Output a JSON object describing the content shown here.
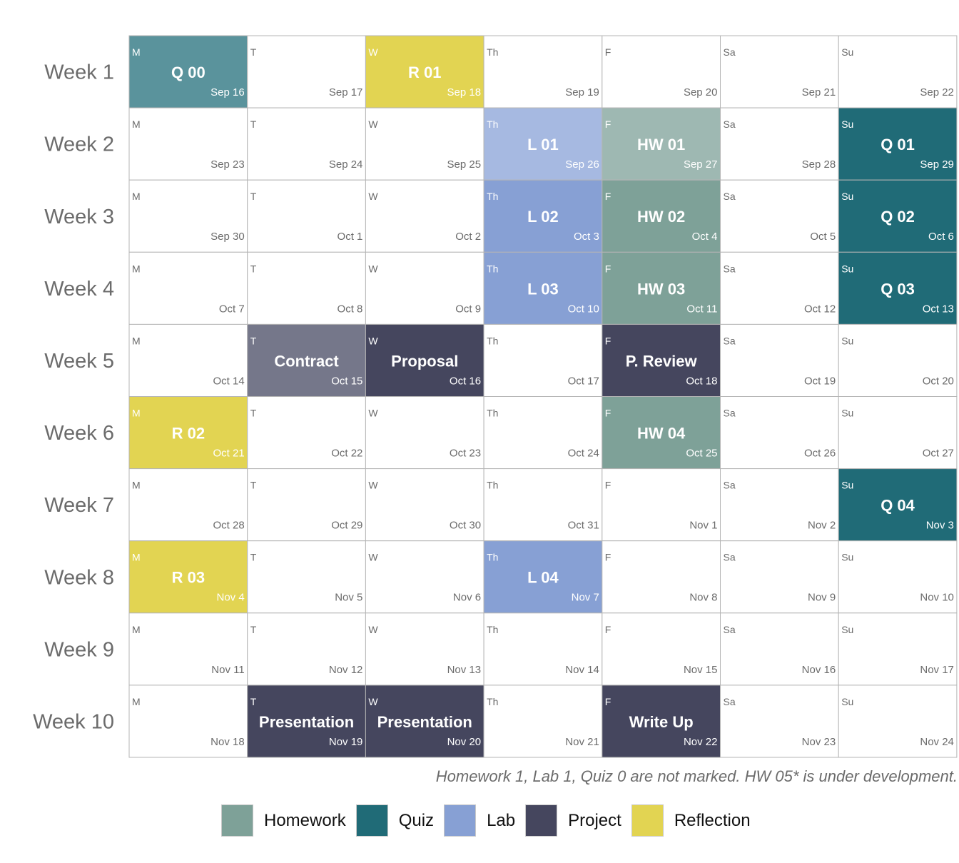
{
  "chart_data": {
    "type": "heatmap",
    "title": "",
    "rows": [
      "Week 1",
      "Week 2",
      "Week 3",
      "Week 4",
      "Week 5",
      "Week 6",
      "Week 7",
      "Week 8",
      "Week 9",
      "Week 10"
    ],
    "days": [
      "M",
      "T",
      "W",
      "Th",
      "F",
      "Sa",
      "Su"
    ],
    "dates": [
      [
        "Sep 16",
        "Sep 17",
        "Sep 18",
        "Sep 19",
        "Sep 20",
        "Sep 21",
        "Sep 22"
      ],
      [
        "Sep 23",
        "Sep 24",
        "Sep 25",
        "Sep 26",
        "Sep 27",
        "Sep 28",
        "Sep 29"
      ],
      [
        "Sep 30",
        "Oct 1",
        "Oct 2",
        "Oct 3",
        "Oct 4",
        "Oct 5",
        "Oct 6"
      ],
      [
        "Oct 7",
        "Oct 8",
        "Oct 9",
        "Oct 10",
        "Oct 11",
        "Oct 12",
        "Oct 13"
      ],
      [
        "Oct 14",
        "Oct 15",
        "Oct 16",
        "Oct 17",
        "Oct 18",
        "Oct 19",
        "Oct 20"
      ],
      [
        "Oct 21",
        "Oct 22",
        "Oct 23",
        "Oct 24",
        "Oct 25",
        "Oct 26",
        "Oct 27"
      ],
      [
        "Oct 28",
        "Oct 29",
        "Oct 30",
        "Oct 31",
        "Nov 1",
        "Nov 2",
        "Nov 3"
      ],
      [
        "Nov 4",
        "Nov 5",
        "Nov 6",
        "Nov 7",
        "Nov 8",
        "Nov 9",
        "Nov 10"
      ],
      [
        "Nov 11",
        "Nov 12",
        "Nov 13",
        "Nov 14",
        "Nov 15",
        "Nov 16",
        "Nov 17"
      ],
      [
        "Nov 18",
        "Nov 19",
        "Nov 20",
        "Nov 21",
        "Nov 22",
        "Nov 23",
        "Nov 24"
      ]
    ],
    "events": [
      {
        "week": 1,
        "day": 1,
        "label": "Q 00",
        "category": "Quiz",
        "muted": true
      },
      {
        "week": 1,
        "day": 3,
        "label": "R 01",
        "category": "Reflection"
      },
      {
        "week": 2,
        "day": 4,
        "label": "L 01",
        "category": "Lab",
        "muted": true
      },
      {
        "week": 2,
        "day": 5,
        "label": "HW 01",
        "category": "Homework",
        "muted": true
      },
      {
        "week": 2,
        "day": 7,
        "label": "Q 01",
        "category": "Quiz"
      },
      {
        "week": 3,
        "day": 4,
        "label": "L 02",
        "category": "Lab"
      },
      {
        "week": 3,
        "day": 5,
        "label": "HW 02",
        "category": "Homework"
      },
      {
        "week": 3,
        "day": 7,
        "label": "Q 02",
        "category": "Quiz"
      },
      {
        "week": 4,
        "day": 4,
        "label": "L 03",
        "category": "Lab"
      },
      {
        "week": 4,
        "day": 5,
        "label": "HW 03",
        "category": "Homework"
      },
      {
        "week": 4,
        "day": 7,
        "label": "Q 03",
        "category": "Quiz"
      },
      {
        "week": 5,
        "day": 2,
        "label": "Contract",
        "category": "Project",
        "muted": true
      },
      {
        "week": 5,
        "day": 3,
        "label": "Proposal",
        "category": "Project"
      },
      {
        "week": 5,
        "day": 5,
        "label": "P. Review",
        "category": "Project"
      },
      {
        "week": 6,
        "day": 1,
        "label": "R 02",
        "category": "Reflection"
      },
      {
        "week": 6,
        "day": 5,
        "label": "HW 04",
        "category": "Homework"
      },
      {
        "week": 7,
        "day": 7,
        "label": "Q 04",
        "category": "Quiz"
      },
      {
        "week": 8,
        "day": 1,
        "label": "R 03",
        "category": "Reflection"
      },
      {
        "week": 8,
        "day": 4,
        "label": "L 04",
        "category": "Lab"
      },
      {
        "week": 10,
        "day": 2,
        "label": "Presentation",
        "category": "Project"
      },
      {
        "week": 10,
        "day": 3,
        "label": "Presentation",
        "category": "Project"
      },
      {
        "week": 10,
        "day": 5,
        "label": "Write Up",
        "category": "Project"
      }
    ],
    "colors": {
      "Homework": "#7ea198",
      "Quiz": "#206b77",
      "Lab": "#87a0d4",
      "Project": "#45465e",
      "Reflection": "#e2d452"
    },
    "muted_colors": {
      "Homework": "#9eb8b2",
      "Quiz": "#5a939c",
      "Lab": "#a6b9e1",
      "Project": "#75778a"
    },
    "legend": [
      "Homework",
      "Quiz",
      "Lab",
      "Project",
      "Reflection"
    ],
    "legend_position": "bottom",
    "caption": "Homework 1, Lab 1, Quiz 0 are not marked. HW 05* is under development."
  }
}
